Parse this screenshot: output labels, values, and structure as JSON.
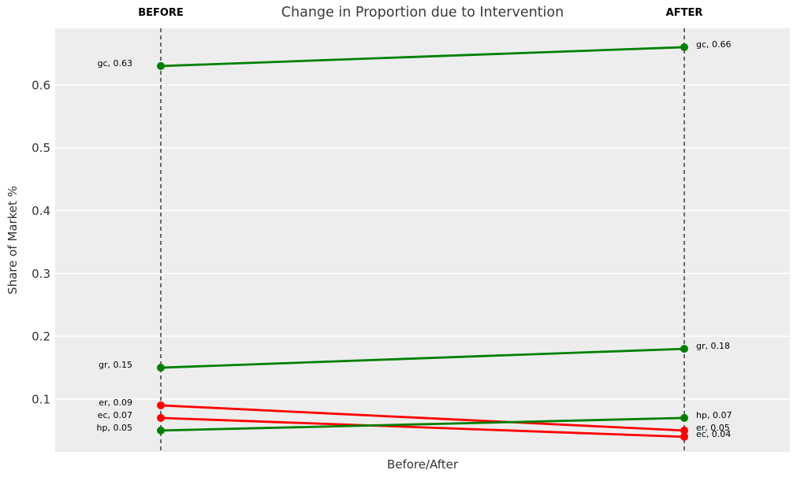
{
  "chart_data": {
    "type": "line",
    "variant": "slopegraph",
    "title": "Change in Proportion due to Intervention",
    "xlabel": "Before/After",
    "ylabel": "Share of Market %",
    "columns": [
      {
        "label": "BEFORE"
      },
      {
        "label": "AFTER"
      }
    ],
    "yticks": [
      0.1,
      0.2,
      0.3,
      0.4,
      0.5,
      0.6
    ],
    "ylim": [
      0.016,
      0.69
    ],
    "grid": {
      "horizontal": true,
      "color": "#ffffff"
    },
    "plot_bg": "#ededed",
    "axis_line_color": "#111111",
    "palette": {
      "increase": "#008000",
      "decrease": "#ff0000"
    },
    "series": [
      {
        "name": "gc",
        "before": 0.63,
        "after": 0.66,
        "trend": "increase",
        "color": "#008000",
        "before_label": "gc, 0.63",
        "after_label": "gc, 0.66"
      },
      {
        "name": "gr",
        "before": 0.15,
        "after": 0.18,
        "trend": "increase",
        "color": "#008000",
        "before_label": "gr, 0.15",
        "after_label": "gr, 0.18"
      },
      {
        "name": "er",
        "before": 0.09,
        "after": 0.05,
        "trend": "decrease",
        "color": "#ff0000",
        "before_label": "er, 0.09",
        "after_label": "er, 0.05"
      },
      {
        "name": "ec",
        "before": 0.07,
        "after": 0.04,
        "trend": "decrease",
        "color": "#ff0000",
        "before_label": "ec, 0.07",
        "after_label": "ec, 0.04"
      },
      {
        "name": "hp",
        "before": 0.05,
        "after": 0.07,
        "trend": "increase",
        "color": "#008000",
        "before_label": "hp, 0.05",
        "after_label": "hp, 0.07"
      }
    ]
  }
}
